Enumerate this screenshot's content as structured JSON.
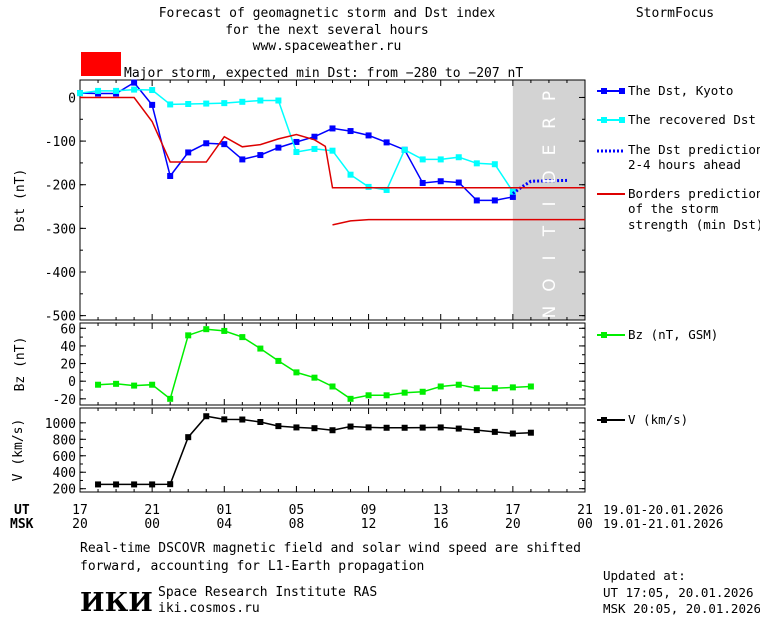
{
  "header": {
    "title_line1": "Forecast of geomagnetic storm and Dst index",
    "title_line2": "for the next several hours",
    "title_line3": "www.spaceweather.ru",
    "brand": "StormFocus",
    "storm_status": "Major storm, expected min Dst: from −280 to −207 nT"
  },
  "colors": {
    "storm_badge": "#ff0000",
    "dst_kyoto": "#0000ff",
    "dst_recovered": "#00ffff",
    "dst_prediction": "#0000ff",
    "borders": "#dd0000",
    "bz": "#00ee00",
    "v": "#000000",
    "prediction_shade": "#d3d3d3"
  },
  "prediction_label": "PREDITION",
  "legend": {
    "dst_kyoto": "The Dst, Kyoto",
    "dst_recovered": "The recovered Dst",
    "dst_prediction_l1": "The Dst prediction",
    "dst_prediction_l2": "2-4 hours ahead",
    "borders_l1": "Borders prediction",
    "borders_l2": "of the storm",
    "borders_l3": "strength (min Dst)",
    "bz": "Bz (nT, GSM)",
    "v": "V (km/s)"
  },
  "axis": {
    "ut_label": "UT",
    "msk_label": "MSK",
    "ut_ticks": [
      "17",
      "21",
      "01",
      "05",
      "09",
      "13",
      "17",
      "21"
    ],
    "msk_ticks": [
      "20",
      "00",
      "04",
      "08",
      "12",
      "16",
      "20",
      "00"
    ],
    "ut_range_text": "19.01-20.01.2026",
    "msk_range_text": "19.01-21.01.2026"
  },
  "footer": {
    "note_line1": "Real-time DSCOVR magnetic field and solar wind speed are shifted",
    "note_line2": "forward, accounting for L1-Earth propagation",
    "logo_text": "ИКИ",
    "institute": "Space Research Institute RAS",
    "site": "iki.cosmos.ru",
    "updated_label": "Updated at:",
    "updated_ut": "UT   17:05, 20.01.2026",
    "updated_msk": "MSK 20:05, 20.01.2026"
  },
  "chart_data": [
    {
      "type": "line",
      "ylabel": "Dst (nT)",
      "ylim": [
        -510,
        40
      ],
      "yticks": [
        0,
        -100,
        -200,
        -300,
        -400,
        -500
      ],
      "xlim_hours_since_ut_17": [
        0,
        28
      ],
      "prediction_region": [
        24,
        28
      ],
      "grid": false,
      "legend_position": "right",
      "series": [
        {
          "name": "The Dst, Kyoto",
          "color": "#0000ff",
          "marker": "square",
          "x": [
            0,
            1,
            2,
            3,
            4,
            5,
            6,
            7,
            8,
            9,
            10,
            11,
            12,
            13,
            14,
            15,
            16,
            17,
            18,
            19,
            20,
            21,
            22,
            23,
            24
          ],
          "y": [
            10,
            9,
            9,
            34,
            -17,
            -180,
            -126,
            -105,
            -107,
            -142,
            -132,
            -115,
            -102,
            -90,
            -71,
            -77,
            -87,
            -103,
            -120,
            -196,
            -192,
            -195,
            -236,
            -236,
            -228
          ]
        },
        {
          "name": "The recovered Dst",
          "color": "#00ffff",
          "marker": "square",
          "x": [
            0,
            1,
            2,
            3,
            4,
            5,
            6,
            7,
            8,
            9,
            10,
            11,
            12,
            13,
            14,
            15,
            16,
            17,
            18,
            19,
            20,
            21,
            22,
            23,
            24
          ],
          "y": [
            10,
            15,
            15,
            18,
            17,
            -16,
            -15,
            -14,
            -13,
            -10,
            -7,
            -7,
            -125,
            -118,
            -122,
            -177,
            -205,
            -212,
            -120,
            -142,
            -142,
            -137,
            -151,
            -153,
            -216
          ]
        },
        {
          "name": "The Dst prediction 2-4 hours ahead",
          "color": "#0000ff",
          "style": "dotted",
          "x": [
            24,
            24.5,
            25,
            26,
            27
          ],
          "y": [
            -220,
            -205,
            -192,
            -191,
            -190
          ]
        },
        {
          "name": "Borders prediction of the storm strength (min Dst)",
          "color": "#dd0000",
          "role": "line-1",
          "x": [
            0,
            3,
            4,
            5,
            7,
            8,
            9,
            10,
            11,
            12,
            13,
            13.6,
            14,
            15,
            16,
            17,
            18,
            19,
            20,
            21,
            22,
            23,
            24,
            25,
            26,
            27,
            28
          ],
          "y": [
            0,
            0,
            -55,
            -148,
            -148,
            -90,
            -113,
            -108,
            -95,
            -85,
            -97,
            -112,
            -207,
            -207,
            -207,
            -207,
            -207,
            -207,
            -207,
            -207,
            -207,
            -207,
            -207,
            -207,
            -207,
            -207,
            -207
          ]
        },
        {
          "name": "Borders prediction of the storm strength (min Dst)",
          "color": "#dd0000",
          "role": "line-2",
          "x": [
            14,
            15,
            16,
            20,
            24,
            28
          ],
          "y": [
            -292,
            -283,
            -280,
            -280,
            -280,
            -280
          ]
        }
      ]
    },
    {
      "type": "line",
      "ylabel": "Bz (nT)",
      "ylim": [
        -27,
        66
      ],
      "yticks": [
        60,
        40,
        20,
        0,
        -20
      ],
      "series": [
        {
          "name": "Bz (nT, GSM)",
          "color": "#00ee00",
          "marker": "square",
          "x": [
            1,
            2,
            3,
            4,
            5,
            6,
            7,
            8,
            9,
            10,
            11,
            12,
            13,
            14,
            15,
            16,
            17,
            18,
            19,
            20,
            21,
            22,
            23,
            24,
            25
          ],
          "y": [
            -4,
            -3,
            -5,
            -4,
            -20,
            52,
            59,
            57,
            50,
            37,
            23,
            10,
            4,
            -6,
            -20,
            -16,
            -16,
            -13,
            -12,
            -6,
            -4,
            -8,
            -8,
            -7,
            -6
          ]
        }
      ]
    },
    {
      "type": "line",
      "ylabel": "V (km/s)",
      "ylim": [
        160,
        1180
      ],
      "yticks": [
        1000,
        800,
        600,
        400,
        200
      ],
      "series": [
        {
          "name": "V (km/s)",
          "color": "#000000",
          "marker": "square",
          "x": [
            1,
            2,
            3,
            4,
            5,
            6,
            7,
            8,
            9,
            10,
            11,
            12,
            13,
            14,
            15,
            16,
            17,
            18,
            19,
            20,
            21,
            22,
            23,
            24,
            25
          ],
          "y": [
            252,
            252,
            252,
            252,
            255,
            826,
            1080,
            1042,
            1040,
            1010,
            960,
            944,
            935,
            910,
            955,
            945,
            940,
            940,
            942,
            944,
            930,
            912,
            890,
            870,
            880
          ]
        }
      ]
    }
  ]
}
